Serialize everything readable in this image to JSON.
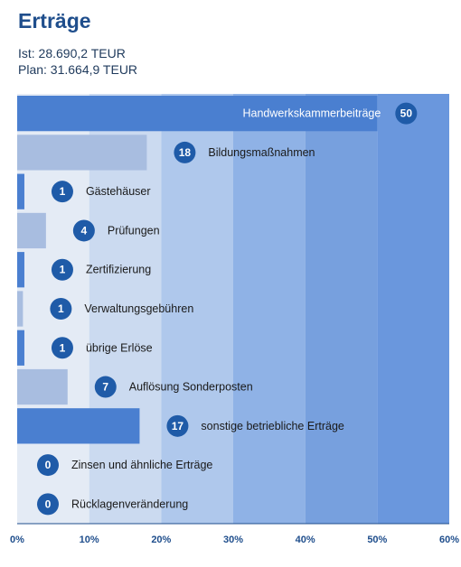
{
  "header": {
    "title": "Erträge",
    "ist": "Ist: 28.690,2 TEUR",
    "plan": "Plan: 31.664,9 TEUR"
  },
  "chart_data": {
    "type": "bar",
    "orientation": "horizontal",
    "categories": [
      "Handwerkskammerbeiträge",
      "Bildungsmaßnahmen",
      "Gästehäuser",
      "Prüfungen",
      "Zertifizierung",
      "Verwaltungsgebühren",
      "übrige Erlöse",
      "Auflösung Sonderposten",
      "sonstige betriebliche Erträge",
      "Zinsen und ähnliche Erträge",
      "Rücklagenveränderung"
    ],
    "values": [
      50,
      18,
      1,
      4,
      1,
      1,
      1,
      7,
      17,
      0,
      0
    ],
    "bar_values": [
      50,
      18,
      1,
      4,
      1,
      0.8,
      1,
      7,
      17,
      0,
      0
    ],
    "bar_colors": [
      "#4a7fd0",
      "#a8bde0",
      "#4a7fd0",
      "#a8bde0",
      "#4a7fd0",
      "#a8bde0",
      "#4a7fd0",
      "#a8bde0",
      "#4a7fd0",
      "#4a7fd0",
      "#4a7fd0"
    ],
    "xlim": [
      0,
      60
    ],
    "xticks": [
      "0%",
      "10%",
      "20%",
      "30%",
      "40%",
      "50%",
      "60%"
    ],
    "grid": true,
    "background_bands": [
      "#e4ebf5",
      "#cbdaf0",
      "#afc8ec",
      "#8fb2e6",
      "#77a0de",
      "#6a97dd"
    ],
    "badge_color": "#1f5ba8",
    "axis_color": "#1f4e8c"
  }
}
